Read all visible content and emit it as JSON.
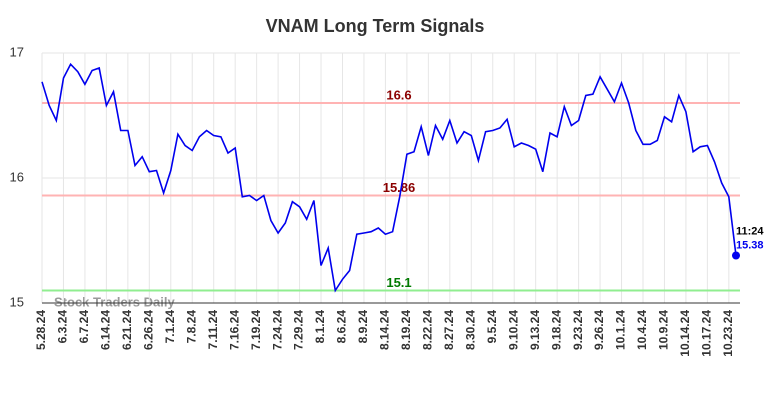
{
  "chart_data": {
    "type": "line",
    "title": "VNAM Long Term Signals",
    "categories": [
      "5.28.24",
      null,
      null,
      "6.3.24",
      null,
      null,
      "6.7.24",
      null,
      null,
      "6.14.24",
      null,
      null,
      "6.21.24",
      null,
      null,
      "6.26.24",
      null,
      null,
      "7.1.24",
      null,
      null,
      "7.8.24",
      null,
      null,
      "7.11.24",
      null,
      null,
      "7.16.24",
      null,
      null,
      "7.19.24",
      null,
      null,
      "7.24.24",
      null,
      null,
      "7.29.24",
      null,
      null,
      "8.1.24",
      null,
      null,
      "8.6.24",
      null,
      null,
      "8.9.24",
      null,
      null,
      "8.14.24",
      null,
      null,
      "8.19.24",
      null,
      null,
      "8.22.24",
      null,
      null,
      "8.27.24",
      null,
      null,
      "8.30.24",
      null,
      null,
      "9.5.24",
      null,
      null,
      "9.10.24",
      null,
      null,
      "9.13.24",
      null,
      null,
      "9.18.24",
      null,
      null,
      "9.23.24",
      null,
      null,
      "9.26.24",
      null,
      null,
      "10.1.24",
      null,
      null,
      "10.4.24",
      null,
      null,
      "10.9.24",
      null,
      null,
      "10.14.24",
      null,
      null,
      "10.17.24",
      null,
      null,
      "10.23.24",
      null
    ],
    "values": [
      16.77,
      16.58,
      16.46,
      16.8,
      16.91,
      16.85,
      16.75,
      16.86,
      16.88,
      16.58,
      16.69,
      16.38,
      16.38,
      16.1,
      16.17,
      16.05,
      16.06,
      15.88,
      16.06,
      16.35,
      16.26,
      16.22,
      16.33,
      16.38,
      16.34,
      16.33,
      16.2,
      16.24,
      15.85,
      15.86,
      15.82,
      15.86,
      15.66,
      15.56,
      15.64,
      15.81,
      15.77,
      15.67,
      15.82,
      15.3,
      15.44,
      15.1,
      15.19,
      15.26,
      15.55,
      15.56,
      15.57,
      15.6,
      15.55,
      15.57,
      15.85,
      16.19,
      16.21,
      16.41,
      16.18,
      16.42,
      16.31,
      16.46,
      16.28,
      16.37,
      16.34,
      16.14,
      16.37,
      16.38,
      16.4,
      16.47,
      16.25,
      16.28,
      16.26,
      16.23,
      16.05,
      16.36,
      16.33,
      16.57,
      16.42,
      16.46,
      16.66,
      16.67,
      16.81,
      16.71,
      16.61,
      16.76,
      16.6,
      16.38,
      16.27,
      16.27,
      16.3,
      16.49,
      16.45,
      16.66,
      16.53,
      16.21,
      16.25,
      16.26,
      16.13,
      15.96,
      15.85,
      15.38
    ],
    "color": "#0000ee",
    "ylim": [
      15,
      17
    ],
    "yticks": [
      15,
      16,
      17
    ],
    "grid": true,
    "hlines": [
      {
        "value": 16.6,
        "color": "#ffb3b3",
        "text_color": "#8b0000"
      },
      {
        "value": 15.86,
        "color": "#ffb3b3",
        "text_color": "#8b0000"
      },
      {
        "value": 15.1,
        "color": "#90ee90",
        "text_color": "#007a00"
      }
    ],
    "last_time": "11:24",
    "watermark": "Stock Traders Daily"
  }
}
